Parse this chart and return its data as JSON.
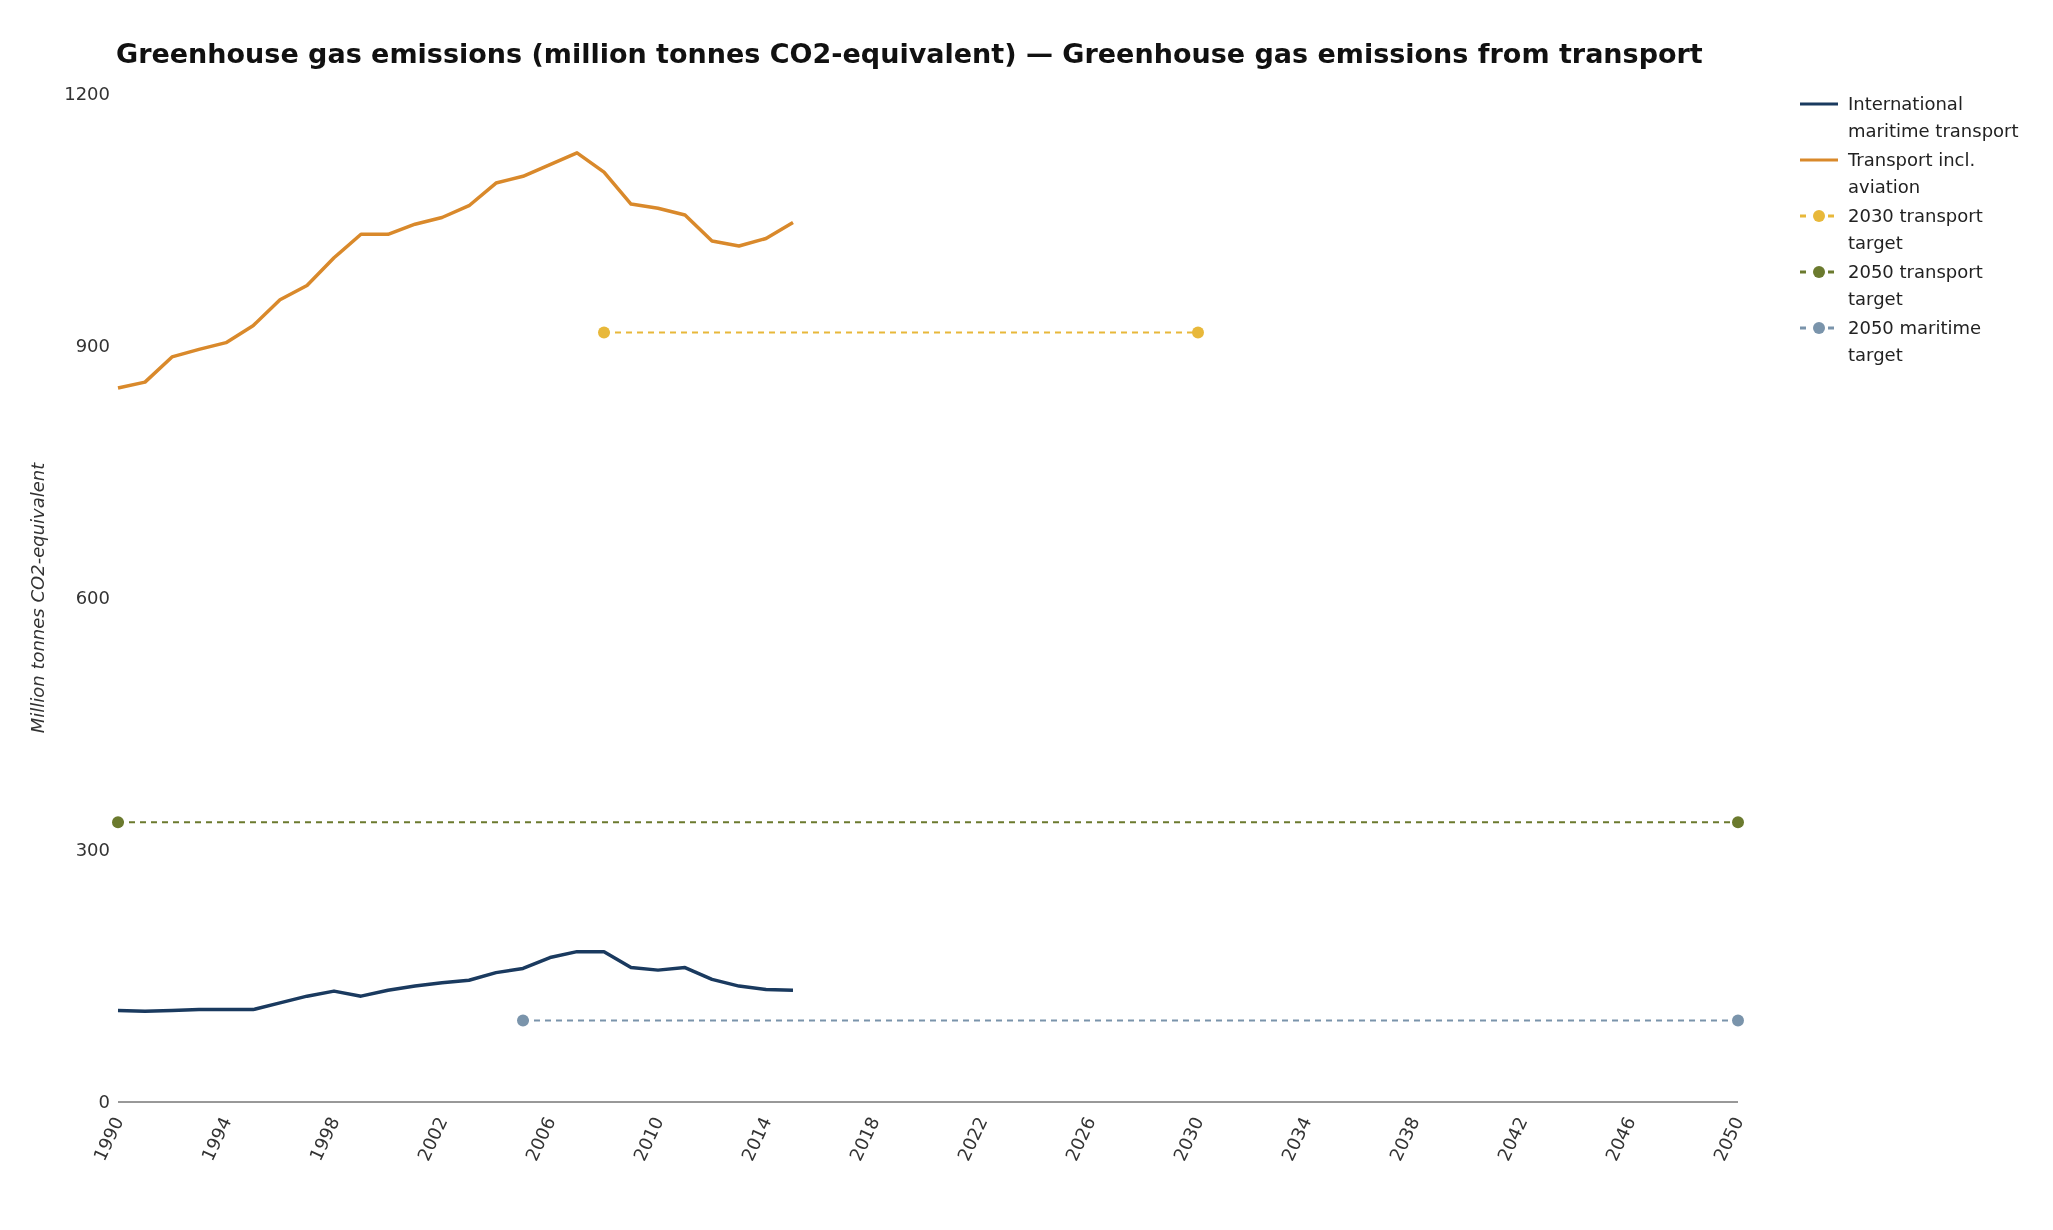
{
  "chart_data": {
    "type": "line",
    "title": "Greenhouse gas emissions (million tonnes CO2-equivalent) — Greenhouse gas emissions from transport",
    "ylabel": "Million tonnes CO2-equivalent",
    "xlim": [
      1990,
      2050
    ],
    "xticks": [
      1990,
      1994,
      1998,
      2002,
      2006,
      2010,
      2014,
      2018,
      2022,
      2026,
      2030,
      2034,
      2038,
      2042,
      2046,
      2050
    ],
    "ylim": [
      0,
      1200
    ],
    "yticks": [
      0,
      300,
      600,
      900,
      1200
    ],
    "grid": false,
    "legend": "top right",
    "series": [
      {
        "name": "International maritime transport",
        "color": "#1a3a5f",
        "marker": "none",
        "line_style": "solid",
        "x": [
          1990,
          1991,
          1992,
          1993,
          1994,
          1995,
          1996,
          1997,
          1998,
          1999,
          2000,
          2001,
          2002,
          2003,
          2004,
          2005,
          2006,
          2007,
          2008,
          2009,
          2010,
          2011,
          2012,
          2013,
          2014,
          2015
        ],
        "values": [
          109,
          108,
          109,
          110,
          110,
          110,
          118,
          126,
          132,
          126,
          133,
          138,
          142,
          145,
          154,
          159,
          172,
          179,
          179,
          160,
          157,
          160,
          146,
          138,
          134,
          133
        ]
      },
      {
        "name": "Transport incl. aviation",
        "color": "#d9892b",
        "marker": "none",
        "line_style": "solid",
        "x": [
          1990,
          1991,
          1992,
          1993,
          1994,
          1995,
          1996,
          1997,
          1998,
          1999,
          2000,
          2001,
          2002,
          2003,
          2004,
          2005,
          2006,
          2007,
          2008,
          2009,
          2010,
          2011,
          2012,
          2013,
          2014,
          2015
        ],
        "values": [
          850,
          857,
          887,
          896,
          904,
          924,
          955,
          972,
          1005,
          1033,
          1033,
          1045,
          1053,
          1067,
          1094,
          1102,
          1116,
          1130,
          1107,
          1069,
          1064,
          1056,
          1025,
          1019,
          1028,
          1047
        ]
      },
      {
        "name": "2030 transport target",
        "color": "#e8b83a",
        "marker": "circle",
        "line_style": "dashed",
        "x": [
          2008,
          2030
        ],
        "values": [
          916,
          916
        ]
      },
      {
        "name": "2050 transport target",
        "color": "#6b7a2e",
        "marker": "circle",
        "line_style": "dashed",
        "x": [
          1990,
          2050
        ],
        "values": [
          333,
          333
        ]
      },
      {
        "name": "2050 maritime target",
        "color": "#7a94ab",
        "marker": "circle",
        "line_style": "dashed",
        "x": [
          2005,
          2050
        ],
        "values": [
          97,
          97
        ]
      }
    ]
  }
}
